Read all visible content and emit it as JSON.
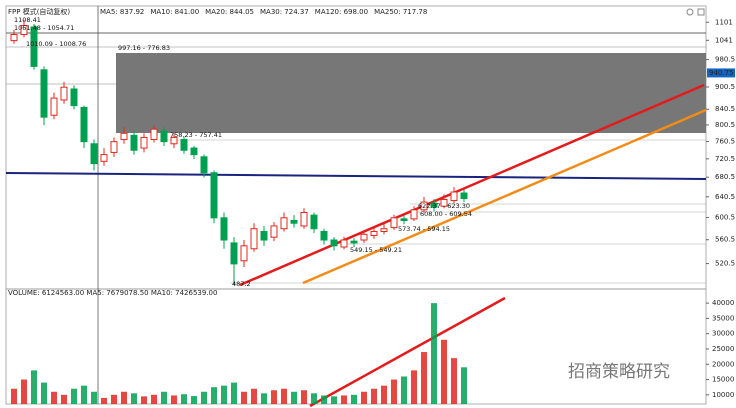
{
  "chart_data": {
    "type": "candlestick",
    "header": "FPP 模式(自动复权)",
    "indicators": [
      "MA5: 837.92",
      "MA10: 841.00",
      "MA20: 844.05",
      "MA30: 724.37",
      "MA120: 698.00",
      "MA250: 717.78"
    ],
    "log_scale": true,
    "ylim": [
      481,
      1158
    ],
    "yticks": [
      1101,
      1041,
      980.5,
      900.5,
      840.5,
      800.5,
      760.5,
      720.5,
      680.5,
      640.5,
      600.5,
      560.5,
      520.5
    ],
    "price_marker": 940.75,
    "up_color": "#e0281e",
    "down_color": "#00a050",
    "candles": {
      "open": [
        1040,
        1060,
        1085,
        950,
        825,
        865,
        895,
        845,
        755,
        715,
        735,
        765,
        775,
        745,
        765,
        785,
        755,
        765,
        745,
        725,
        690,
        600,
        555,
        525,
        545,
        575,
        565,
        580,
        595,
        585,
        605,
        575,
        560,
        548,
        558,
        560,
        568,
        575,
        582,
        598,
        598,
        615,
        628,
        622,
        633,
        648
      ],
      "high": [
        1075,
        1108.41,
        1095,
        960,
        885,
        915,
        905,
        850,
        765,
        745,
        770,
        795,
        785,
        780,
        800,
        795,
        780,
        772,
        750,
        730,
        695,
        610,
        565,
        560,
        590,
        585,
        592,
        610,
        605,
        618,
        610,
        580,
        565,
        566,
        563,
        576,
        582,
        588,
        606,
        604,
        622,
        640,
        636,
        645,
        660,
        655
      ],
      "low": [
        1030,
        1050,
        950,
        800,
        815,
        855,
        840,
        745,
        695,
        705,
        725,
        755,
        730,
        735,
        758,
        750,
        745,
        732,
        720,
        680,
        590,
        545,
        487.2,
        515,
        540,
        550,
        558,
        575,
        582,
        580,
        572,
        552,
        542,
        544,
        548,
        555,
        562,
        570,
        578,
        588,
        594,
        610,
        612,
        618,
        628,
        630
      ],
      "close": [
        1060,
        1090,
        960,
        820,
        870,
        900,
        850,
        760,
        710,
        730,
        760,
        780,
        740,
        770,
        790,
        760,
        770,
        740,
        730,
        690,
        600,
        560,
        520,
        550,
        580,
        560,
        585,
        600,
        590,
        610,
        580,
        560,
        550,
        560,
        555,
        570,
        575,
        580,
        600,
        595,
        615,
        630,
        620,
        635,
        650,
        637
      ]
    },
    "annotations": [
      "1108.41",
      "1061.48 - 1054.71",
      "1010.09 - 1008.76",
      "997.16 - 776.83",
      "758.23 - 757.41",
      "487.2",
      "622.37 - 623.30",
      "608.00 - 609.54",
      "573.74 - 594.15",
      "549.15 - 549.21"
    ],
    "volume": {
      "header": "VOLUME: 6124563.00  MA5: 7679078.50  MA10: 7426539.00",
      "ylim": [
        7000,
        42000
      ],
      "yticks": [
        10000,
        15000,
        20000,
        25000,
        30000,
        35000,
        40000
      ],
      "values": [
        12000,
        15000,
        18000,
        14000,
        11000,
        10000,
        12000,
        13000,
        11000,
        9000,
        10000,
        11000,
        10500,
        9500,
        10000,
        11000,
        9800,
        10200,
        9600,
        11000,
        12500,
        13000,
        14000,
        11000,
        12000,
        10500,
        11500,
        12000,
        11000,
        11500,
        10500,
        9800,
        9500,
        9800,
        10000,
        11000,
        12000,
        13000,
        15000,
        16000,
        18000,
        24000,
        40000,
        28000,
        22000,
        19000
      ]
    },
    "watermark": "招商策略研究"
  }
}
